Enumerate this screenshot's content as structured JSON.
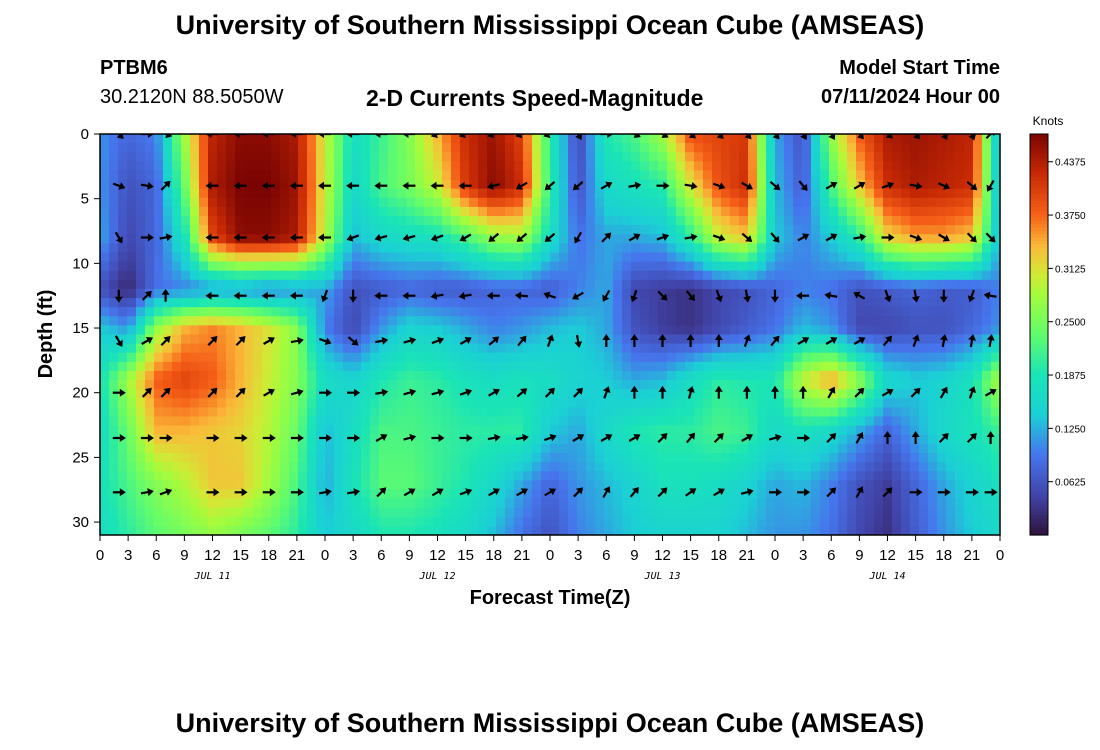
{
  "header": {
    "title": "University of Southern Mississippi Ocean Cube (AMSEAS)",
    "station": "PTBM6",
    "coordinates": "30.2120N  88.5050W",
    "subtitle": "2-D Currents Speed-Magnitude",
    "model_start_label": "Model Start Time",
    "model_start_value": "07/11/2024 Hour 00"
  },
  "footer": {
    "title": "University of Southern Mississippi Ocean Cube (AMSEAS)"
  },
  "chart_data": {
    "type": "heatmap",
    "xlabel": "Forecast Time(Z)",
    "ylabel": "Depth (ft)",
    "x_range_hours": [
      0,
      96
    ],
    "ylim": [
      0,
      31
    ],
    "x_tick_labels": [
      "0",
      "3",
      "6",
      "9",
      "12",
      "15",
      "18",
      "21",
      "0",
      "3",
      "6",
      "9",
      "12",
      "15",
      "18",
      "21",
      "0",
      "3",
      "6",
      "9",
      "12",
      "15",
      "18",
      "21",
      "0",
      "3",
      "6",
      "9",
      "12",
      "15",
      "18",
      "21",
      "0"
    ],
    "y_ticks": [
      0,
      5,
      10,
      15,
      20,
      25,
      30
    ],
    "day_labels": [
      {
        "label": "JUL 11",
        "hour": 12
      },
      {
        "label": "JUL 12",
        "hour": 36
      },
      {
        "label": "JUL 13",
        "hour": 60
      },
      {
        "label": "JUL 14",
        "hour": 84
      }
    ],
    "colorbar": {
      "label": "Knots",
      "min": 0.0,
      "max": 0.47,
      "ticks": [
        "0.4375",
        "0.3750",
        "0.3125",
        "0.2500",
        "0.1875",
        "0.1250",
        "0.0625"
      ],
      "tick_values": [
        0.4375,
        0.375,
        0.3125,
        0.25,
        0.1875,
        0.125,
        0.0625
      ]
    },
    "speed_hours": [
      0,
      3,
      6,
      9,
      12,
      15,
      18,
      21,
      24,
      27,
      30,
      33,
      36,
      39,
      42,
      45,
      48,
      51,
      54,
      57,
      60,
      63,
      66,
      69,
      72,
      75,
      78,
      81,
      84,
      87,
      90,
      93,
      96
    ],
    "speed_depths_ft": [
      0,
      4,
      8,
      12,
      15,
      19,
      23,
      27,
      31
    ],
    "speed_knots": [
      [
        0.11,
        0.08,
        0.1,
        0.28,
        0.43,
        0.46,
        0.46,
        0.44,
        0.3,
        0.17,
        0.21,
        0.26,
        0.34,
        0.42,
        0.45,
        0.4,
        0.2,
        0.05,
        0.19,
        0.22,
        0.28,
        0.39,
        0.4,
        0.41,
        0.12,
        0.06,
        0.27,
        0.38,
        0.44,
        0.45,
        0.44,
        0.43,
        0.11
      ],
      [
        0.11,
        0.06,
        0.08,
        0.24,
        0.44,
        0.47,
        0.47,
        0.45,
        0.3,
        0.16,
        0.22,
        0.25,
        0.3,
        0.41,
        0.46,
        0.42,
        0.2,
        0.06,
        0.16,
        0.18,
        0.2,
        0.31,
        0.39,
        0.42,
        0.13,
        0.07,
        0.22,
        0.33,
        0.42,
        0.44,
        0.43,
        0.42,
        0.11
      ],
      [
        0.12,
        0.05,
        0.08,
        0.18,
        0.4,
        0.46,
        0.46,
        0.44,
        0.29,
        0.13,
        0.16,
        0.17,
        0.18,
        0.22,
        0.27,
        0.28,
        0.17,
        0.09,
        0.12,
        0.12,
        0.13,
        0.2,
        0.3,
        0.33,
        0.14,
        0.1,
        0.14,
        0.2,
        0.32,
        0.35,
        0.35,
        0.33,
        0.12
      ],
      [
        0.06,
        0.02,
        0.09,
        0.1,
        0.11,
        0.11,
        0.1,
        0.11,
        0.12,
        0.06,
        0.07,
        0.08,
        0.07,
        0.07,
        0.08,
        0.08,
        0.07,
        0.1,
        0.12,
        0.05,
        0.04,
        0.03,
        0.05,
        0.06,
        0.08,
        0.1,
        0.09,
        0.06,
        0.07,
        0.08,
        0.07,
        0.07,
        0.1
      ],
      [
        0.14,
        0.11,
        0.27,
        0.34,
        0.36,
        0.34,
        0.31,
        0.26,
        0.1,
        0.05,
        0.11,
        0.15,
        0.14,
        0.12,
        0.1,
        0.11,
        0.13,
        0.14,
        0.12,
        0.06,
        0.04,
        0.03,
        0.05,
        0.07,
        0.09,
        0.13,
        0.11,
        0.05,
        0.05,
        0.06,
        0.06,
        0.08,
        0.11
      ],
      [
        0.18,
        0.28,
        0.38,
        0.4,
        0.38,
        0.34,
        0.3,
        0.26,
        0.17,
        0.15,
        0.19,
        0.21,
        0.2,
        0.18,
        0.17,
        0.18,
        0.17,
        0.15,
        0.14,
        0.12,
        0.13,
        0.17,
        0.2,
        0.19,
        0.19,
        0.3,
        0.35,
        0.27,
        0.16,
        0.14,
        0.15,
        0.18,
        0.29
      ],
      [
        0.17,
        0.24,
        0.34,
        0.34,
        0.33,
        0.32,
        0.29,
        0.24,
        0.13,
        0.17,
        0.22,
        0.22,
        0.21,
        0.2,
        0.2,
        0.2,
        0.14,
        0.12,
        0.16,
        0.19,
        0.2,
        0.2,
        0.22,
        0.21,
        0.16,
        0.18,
        0.16,
        0.12,
        0.08,
        0.12,
        0.16,
        0.18,
        0.21
      ],
      [
        0.18,
        0.22,
        0.26,
        0.29,
        0.33,
        0.33,
        0.28,
        0.22,
        0.12,
        0.18,
        0.23,
        0.23,
        0.21,
        0.19,
        0.16,
        0.12,
        0.08,
        0.11,
        0.13,
        0.15,
        0.18,
        0.18,
        0.17,
        0.15,
        0.12,
        0.13,
        0.1,
        0.06,
        0.04,
        0.08,
        0.12,
        0.15,
        0.18
      ],
      [
        0.17,
        0.2,
        0.23,
        0.25,
        0.27,
        0.25,
        0.23,
        0.2,
        0.14,
        0.16,
        0.19,
        0.19,
        0.18,
        0.16,
        0.13,
        0.09,
        0.06,
        0.1,
        0.12,
        0.14,
        0.15,
        0.15,
        0.15,
        0.13,
        0.11,
        0.11,
        0.09,
        0.05,
        0.03,
        0.07,
        0.11,
        0.14,
        0.16
      ]
    ],
    "vector_depths_ft": [
      0,
      4,
      8,
      12.5,
      16,
      20,
      23.5,
      27.7
    ],
    "vector_hours": [
      2,
      5,
      7,
      12,
      15,
      18,
      21,
      24,
      27,
      30,
      33,
      36,
      39,
      42,
      45,
      48,
      51,
      54,
      57,
      60,
      63,
      66,
      69,
      72,
      75,
      78,
      81,
      84,
      87,
      90,
      93,
      95
    ],
    "vector_directions_deg": [
      [
        135,
        90,
        110,
        270,
        270,
        270,
        270,
        270,
        270,
        270,
        270,
        250,
        250,
        250,
        250,
        250,
        150,
        90,
        115,
        120,
        130,
        135,
        140,
        140,
        150,
        150,
        140,
        130,
        140,
        150,
        160,
        45
      ],
      [
        110,
        100,
        45,
        270,
        270,
        270,
        270,
        270,
        270,
        270,
        270,
        270,
        270,
        255,
        240,
        230,
        230,
        60,
        80,
        90,
        100,
        110,
        120,
        130,
        140,
        60,
        60,
        70,
        100,
        115,
        130,
        210
      ],
      [
        150,
        90,
        80,
        270,
        270,
        270,
        270,
        270,
        250,
        255,
        255,
        250,
        240,
        230,
        230,
        230,
        210,
        45,
        60,
        70,
        80,
        110,
        130,
        140,
        60,
        60,
        80,
        90,
        110,
        120,
        135,
        135
      ],
      [
        180,
        45,
        0,
        270,
        270,
        270,
        270,
        200,
        180,
        270,
        270,
        260,
        260,
        270,
        275,
        290,
        240,
        210,
        200,
        135,
        140,
        160,
        170,
        180,
        270,
        280,
        300,
        160,
        170,
        180,
        200,
        280
      ],
      [
        150,
        60,
        45,
        45,
        45,
        60,
        80,
        110,
        130,
        80,
        75,
        70,
        60,
        50,
        40,
        20,
        170,
        0,
        0,
        0,
        0,
        0,
        20,
        40,
        60,
        60,
        60,
        40,
        20,
        10,
        10,
        10
      ],
      [
        90,
        45,
        45,
        45,
        45,
        60,
        75,
        90,
        90,
        80,
        75,
        75,
        70,
        60,
        50,
        45,
        45,
        20,
        0,
        0,
        15,
        0,
        0,
        0,
        0,
        30,
        45,
        60,
        45,
        30,
        20,
        60
      ],
      [
        90,
        90,
        90,
        90,
        90,
        90,
        90,
        90,
        90,
        60,
        75,
        90,
        90,
        80,
        80,
        70,
        60,
        60,
        60,
        45,
        40,
        45,
        60,
        75,
        90,
        45,
        30,
        0,
        0,
        45,
        45,
        0
      ],
      [
        90,
        80,
        70,
        90,
        90,
        90,
        90,
        80,
        80,
        45,
        60,
        60,
        70,
        60,
        60,
        60,
        45,
        30,
        40,
        45,
        55,
        60,
        75,
        90,
        90,
        45,
        30,
        45,
        90,
        90,
        90,
        90
      ]
    ]
  }
}
